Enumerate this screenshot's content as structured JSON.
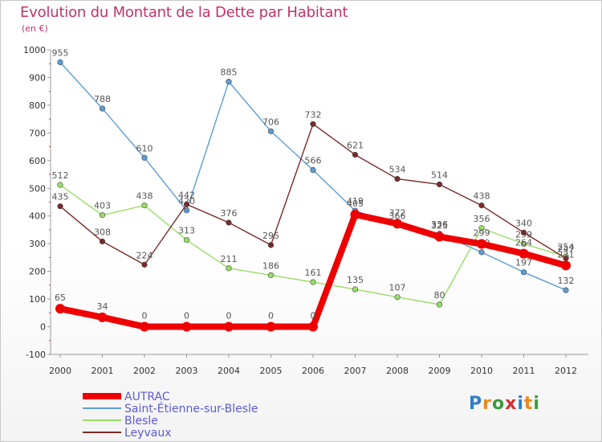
{
  "title": "Evolution du Montant de la Dette par Habitant",
  "subtitle": "(en €)",
  "logo_text": "Proxiti",
  "chart_data": {
    "type": "line",
    "title": "Evolution du Montant de la Dette par Habitant",
    "ylabel": "(en €)",
    "x": [
      "2000",
      "2001",
      "2002",
      "2003",
      "2004",
      "2005",
      "2006",
      "2007",
      "2008",
      "2009",
      "2010",
      "2011",
      "2012"
    ],
    "ylim": [
      -100,
      1000
    ],
    "yticks": [
      -100,
      0,
      100,
      200,
      300,
      400,
      500,
      600,
      700,
      800,
      900,
      1000
    ],
    "grid": false,
    "legend_position": "bottom-left",
    "series": [
      {
        "name": "AUTRAC",
        "color": "#ee0000",
        "values": [
          65,
          34,
          0,
          0,
          0,
          0,
          0,
          405,
          372,
          325,
          299,
          264,
          221
        ],
        "labels": [
          "65",
          "34",
          "0",
          "0",
          "0",
          "0",
          "0",
          "405",
          "372",
          "325",
          "299",
          "264",
          "221"
        ]
      },
      {
        "name": "Saint-Étienne-sur-Blesle",
        "color": "#5c9dd2",
        "values": [
          955,
          788,
          610,
          420,
          885,
          706,
          566,
          419,
          366,
          336,
          269,
          197,
          132
        ],
        "labels": [
          "955",
          "788",
          "610",
          "420",
          "885",
          "706",
          "566",
          "419",
          "366",
          "336",
          "269",
          "197",
          "132"
        ]
      },
      {
        "name": "Blesle",
        "color": "#99dd66",
        "values": [
          512,
          403,
          438,
          313,
          211,
          186,
          161,
          135,
          107,
          80,
          356,
          299,
          254
        ],
        "labels": [
          "512",
          "403",
          "438",
          "313",
          "211",
          "186",
          "161",
          "135",
          "107",
          "80",
          "356",
          "299",
          "254"
        ]
      },
      {
        "name": "Leyvaux",
        "color": "#7a2a2a",
        "values": [
          435,
          308,
          224,
          442,
          376,
          295,
          732,
          621,
          534,
          514,
          438,
          340,
          247
        ],
        "labels": [
          "435",
          "308",
          "224",
          "442",
          "376",
          "295",
          "732",
          "621",
          "534",
          "514",
          "438",
          "340",
          "247"
        ]
      }
    ]
  }
}
